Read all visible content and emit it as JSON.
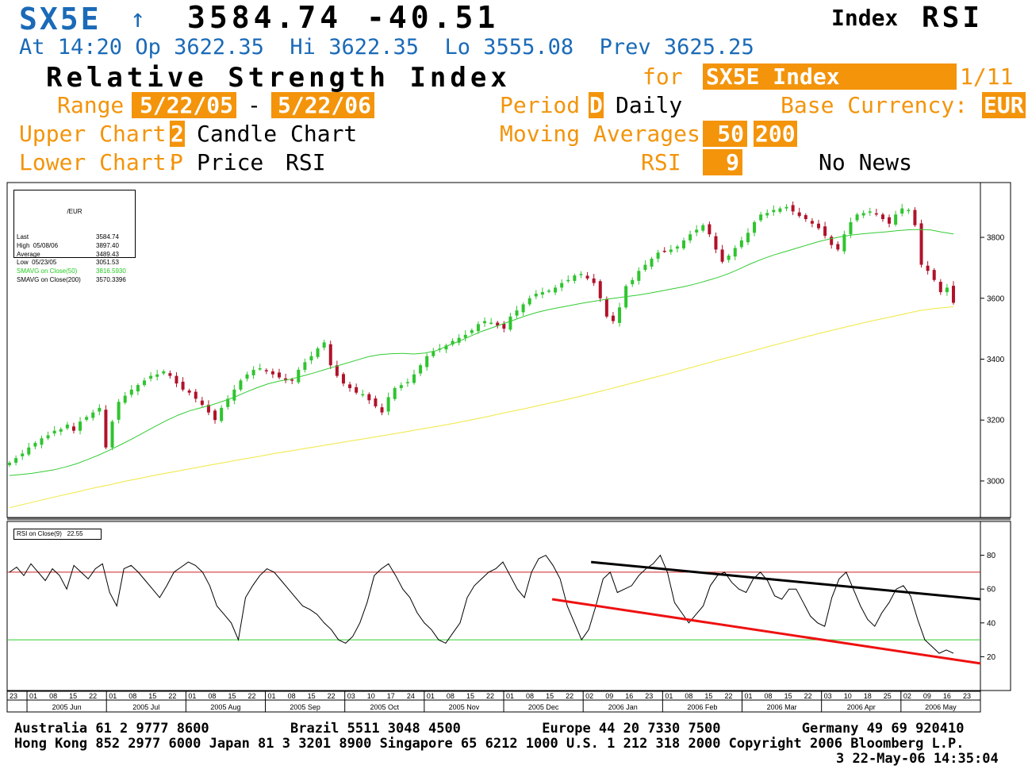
{
  "header": {
    "ticker": "SX5E",
    "arrow": "↑",
    "price": "3584.74",
    "change": "-40.51",
    "type_label": "Index",
    "function_label": "RSI",
    "at_label": "At",
    "time": "14:20",
    "open_label": "Op",
    "open": "3622.35",
    "high_label": "Hi",
    "high": "3622.35",
    "low_label": "Lo",
    "low": "3555.08",
    "prev_label": "Prev",
    "prev": "3625.25"
  },
  "title": {
    "text": "Relative Strength Index",
    "for_label": "for",
    "security": "SX5E Index",
    "page": "1/11"
  },
  "settings": {
    "range_label": "Range",
    "range_start": "5/22/05",
    "range_sep": "-",
    "range_end": "5/22/06",
    "period_label": "Period",
    "period_code": "D",
    "period_value": "Daily",
    "currency_label": "Base Currency:",
    "currency": "EUR",
    "upper_label": "Upper Chart:",
    "upper_code": "2",
    "upper_value": "Candle Chart",
    "ma_label": "Moving Averages",
    "ma1": "50",
    "ma2": "200",
    "lower_label": "Lower Chart:",
    "lower_code": "P",
    "lower_value1": "Price",
    "lower_value2": "RSI",
    "rsi_label": "RSI",
    "rsi_period": "9",
    "news": "No News"
  },
  "legend": {
    "currency": "/EUR",
    "rows": [
      {
        "label": "Last",
        "value": "3584.74"
      },
      {
        "label": "High  05/08/06",
        "value": "3897.40"
      },
      {
        "label": "Average",
        "value": "3489.43"
      },
      {
        "label": "Low  05/23/05",
        "value": "3051.53"
      },
      {
        "label": "SMAVG on Close(50)",
        "value": "3816.5930"
      },
      {
        "label": "SMAVG on Close(200)",
        "value": "3570.3396"
      }
    ]
  },
  "rsi_legend": "RSI on Close(9)   22.55",
  "colors": {
    "accent": "#f3940b",
    "blue": "#1a6ab8",
    "up": "#2fc42f",
    "down": "#b0122a",
    "ma50": "#33cc33",
    "ma200": "#f0e840",
    "upper_band": "#cc2222",
    "lower_band": "#33cc33",
    "trend_up": "#000000",
    "trend_down": "#ee1111"
  },
  "chart_data": [
    {
      "type": "candlestick",
      "y_ticks": [
        "3800",
        "3600",
        "3400",
        "3200",
        "3000"
      ],
      "ylim": [
        2880,
        3980
      ],
      "close": [
        3060,
        3075,
        3090,
        3110,
        3125,
        3140,
        3150,
        3165,
        3170,
        3185,
        3165,
        3195,
        3210,
        3225,
        3240,
        3110,
        3195,
        3260,
        3280,
        3300,
        3315,
        3330,
        3345,
        3350,
        3360,
        3345,
        3320,
        3300,
        3290,
        3270,
        3250,
        3225,
        3200,
        3240,
        3270,
        3300,
        3330,
        3350,
        3365,
        3370,
        3360,
        3350,
        3340,
        3330,
        3330,
        3365,
        3390,
        3410,
        3435,
        3455,
        3380,
        3345,
        3320,
        3305,
        3290,
        3285,
        3265,
        3245,
        3225,
        3275,
        3305,
        3315,
        3325,
        3350,
        3380,
        3410,
        3425,
        3435,
        3445,
        3460,
        3470,
        3480,
        3495,
        3515,
        3525,
        3520,
        3510,
        3500,
        3540,
        3560,
        3580,
        3600,
        3615,
        3620,
        3625,
        3635,
        3650,
        3660,
        3675,
        3680,
        3665,
        3650,
        3600,
        3540,
        3525,
        3570,
        3640,
        3660,
        3690,
        3710,
        3730,
        3750,
        3755,
        3760,
        3770,
        3790,
        3810,
        3825,
        3840,
        3810,
        3760,
        3720,
        3740,
        3765,
        3790,
        3815,
        3850,
        3875,
        3880,
        3890,
        3895,
        3900,
        3885,
        3870,
        3860,
        3845,
        3830,
        3805,
        3775,
        3760,
        3810,
        3850,
        3875,
        3880,
        3885,
        3875,
        3860,
        3845,
        3875,
        3895,
        3890,
        3840,
        3710,
        3690,
        3660,
        3620,
        3635,
        3585
      ],
      "ma50": [
        3018,
        3021,
        3025,
        3031,
        3037,
        3046,
        3057,
        3071,
        3086,
        3103,
        3121,
        3140,
        3160,
        3180,
        3199,
        3216,
        3230,
        3240,
        3250,
        3262,
        3275,
        3291,
        3306,
        3319,
        3328,
        3334,
        3344,
        3354,
        3365,
        3376,
        3387,
        3398,
        3409,
        3415,
        3418,
        3419,
        3417,
        3420,
        3428,
        3444,
        3459,
        3475,
        3491,
        3504,
        3517,
        3530,
        3543,
        3554,
        3563,
        3570,
        3577,
        3584,
        3590,
        3596,
        3601,
        3606,
        3611,
        3617,
        3624,
        3631,
        3638,
        3647,
        3657,
        3668,
        3681,
        3697,
        3714,
        3729,
        3742,
        3753,
        3764,
        3775,
        3786,
        3795,
        3802,
        3808,
        3812,
        3815,
        3818,
        3822,
        3825,
        3826,
        3824,
        3817,
        3811
      ],
      "ma200": [
        2912,
        2925,
        2938,
        2951,
        2963,
        2976,
        2987,
        2999,
        3010,
        3021,
        3031,
        3041,
        3051,
        3061,
        3071,
        3080,
        3090,
        3099,
        3108,
        3117,
        3126,
        3135,
        3144,
        3153,
        3162,
        3172,
        3181,
        3191,
        3202,
        3213,
        3225,
        3236,
        3248,
        3260,
        3272,
        3285,
        3299,
        3313,
        3327,
        3341,
        3355,
        3370,
        3385,
        3400,
        3414,
        3429,
        3444,
        3458,
        3472,
        3486,
        3499,
        3512,
        3525,
        3536,
        3548,
        3560,
        3567,
        3572
      ]
    },
    {
      "type": "line",
      "title": "RSI on Close(9)",
      "last": 22.55,
      "y_ticks": [
        "80",
        "60",
        "40",
        "20"
      ],
      "ylim": [
        0,
        100
      ],
      "upper_band": 70,
      "lower_band": 30,
      "values": [
        70,
        73,
        68,
        75,
        70,
        65,
        72,
        68,
        60,
        74,
        70,
        66,
        72,
        75,
        58,
        50,
        72,
        74,
        70,
        65,
        60,
        55,
        62,
        70,
        73,
        76,
        74,
        70,
        62,
        50,
        45,
        40,
        30,
        55,
        62,
        68,
        72,
        70,
        65,
        60,
        55,
        50,
        48,
        45,
        40,
        36,
        30,
        28,
        32,
        40,
        52,
        68,
        72,
        75,
        68,
        60,
        55,
        46,
        40,
        36,
        30,
        28,
        34,
        40,
        55,
        62,
        66,
        70,
        72,
        76,
        68,
        60,
        55,
        70,
        78,
        80,
        74,
        66,
        50,
        40,
        30,
        36,
        50,
        66,
        70,
        58,
        60,
        62,
        68,
        72,
        75,
        80,
        70,
        52,
        46,
        40,
        45,
        50,
        62,
        68,
        70,
        64,
        60,
        58,
        66,
        70,
        65,
        56,
        54,
        60,
        60,
        52,
        44,
        40,
        38,
        55,
        66,
        70,
        60,
        50,
        42,
        38,
        46,
        52,
        60,
        62,
        56,
        42,
        30,
        26,
        22,
        24,
        22
      ],
      "trend_lines": [
        {
          "from": [
            0.6,
            76
          ],
          "to": [
            1.0,
            54
          ]
        },
        {
          "from": [
            0.56,
            54
          ],
          "to": [
            1.0,
            16
          ]
        }
      ]
    }
  ],
  "x_axis": {
    "days": [
      "23",
      "01",
      "08",
      "15",
      "22",
      "01",
      "08",
      "15",
      "22",
      "01",
      "08",
      "15",
      "22",
      "01",
      "08",
      "15",
      "22",
      "03",
      "10",
      "17",
      "24",
      "01",
      "08",
      "15",
      "22",
      "01",
      "08",
      "15",
      "22",
      "02",
      "09",
      "16",
      "23",
      "01",
      "08",
      "15",
      "22",
      "01",
      "08",
      "15",
      "22",
      "03",
      "10",
      "18",
      "25",
      "02",
      "09",
      "16",
      "23"
    ],
    "months": [
      "2005 Jun",
      "2005 Jul",
      "2005 Aug",
      "2005 Sep",
      "2005 Oct",
      "2005 Nov",
      "2005 Dec",
      "2006 Jan",
      "2006 Feb",
      "2006 Mar",
      "2006 Apr",
      "2006 May"
    ]
  },
  "footer": {
    "line1": "Australia 61 2 9777 8600          Brazil 5511 3048 4500          Europe 44 20 7330 7500          Germany 49 69 920410",
    "line2": "Hong Kong 852 2977 6000 Japan 81 3 3201 8900 Singapore 65 6212 1000 U.S. 1 212 318 2000 Copyright 2006 Bloomberg L.P.",
    "line3": "3 22-May-06 14:35:04"
  }
}
